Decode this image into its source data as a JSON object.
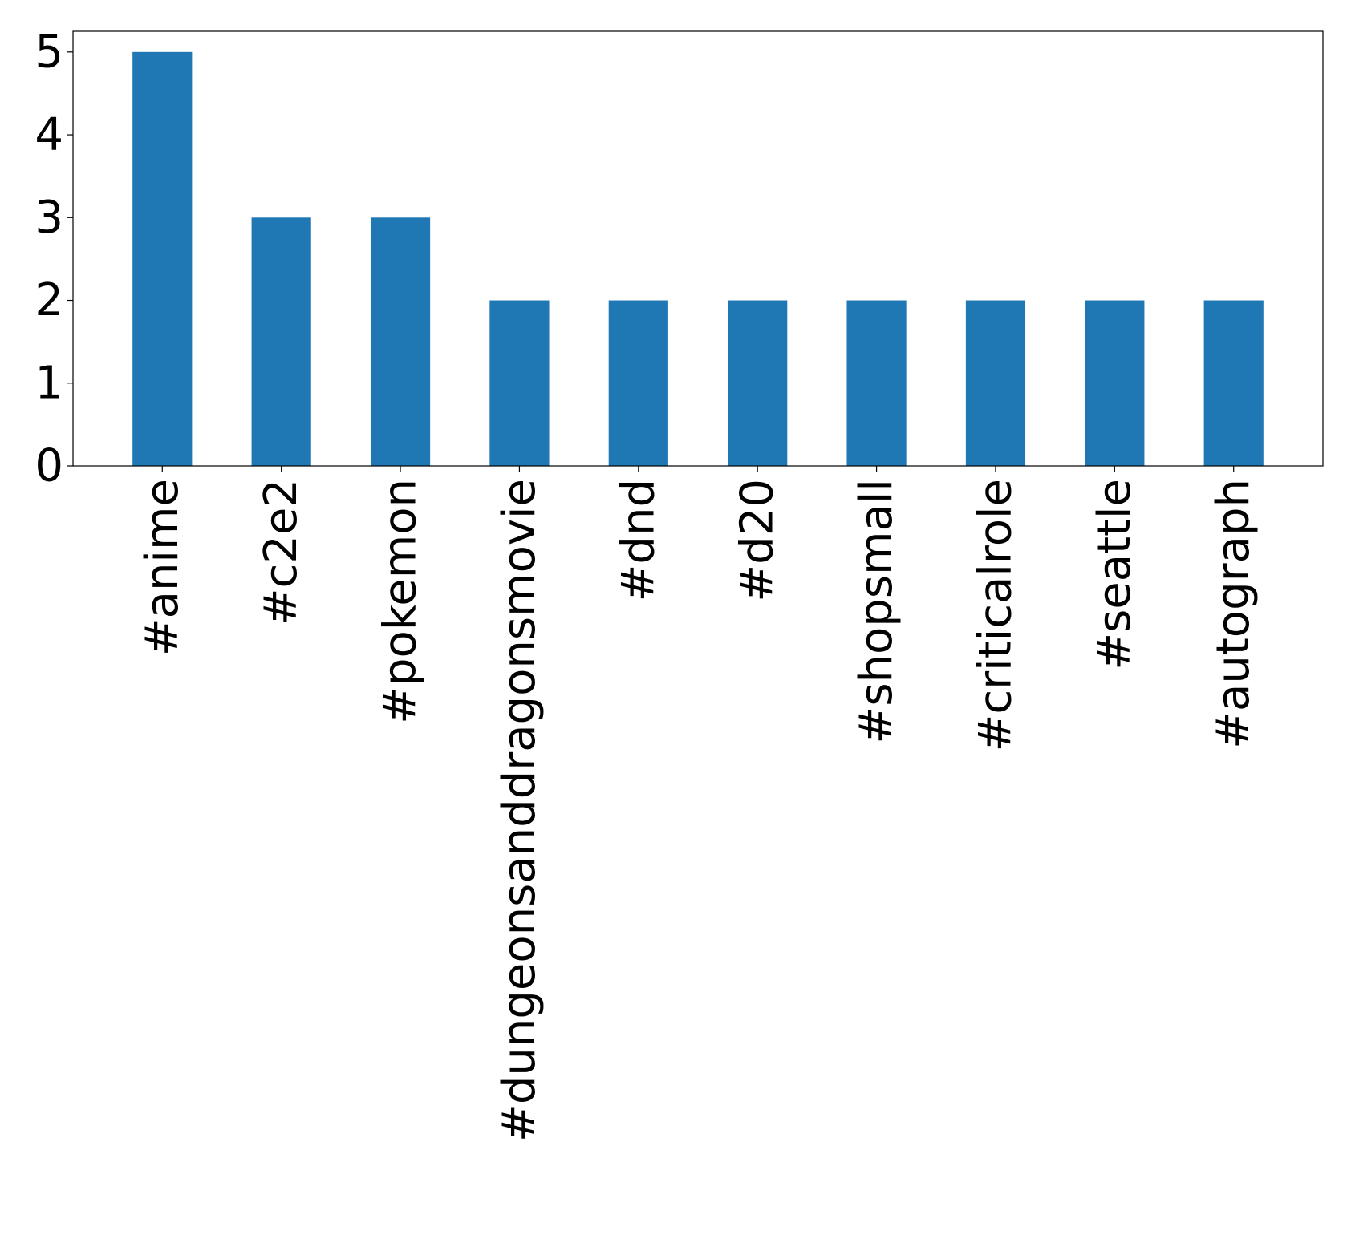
{
  "chart_data": {
    "type": "bar",
    "title": "",
    "xlabel": "",
    "ylabel": "",
    "categories": [
      "#anime",
      "#c2e2",
      "#pokemon",
      "#dungeonsanddragonsmovie",
      "#dnd",
      "#d20",
      "#shopsmall",
      "#criticalrole",
      "#seattle",
      "#autograph"
    ],
    "values": [
      5,
      3,
      3,
      2,
      2,
      2,
      2,
      2,
      2,
      2
    ],
    "ylim": [
      0,
      5.25
    ],
    "yticks": [
      0,
      1,
      2,
      3,
      4,
      5
    ],
    "grid": false,
    "legend": false,
    "bar_color": "#1f77b4"
  }
}
